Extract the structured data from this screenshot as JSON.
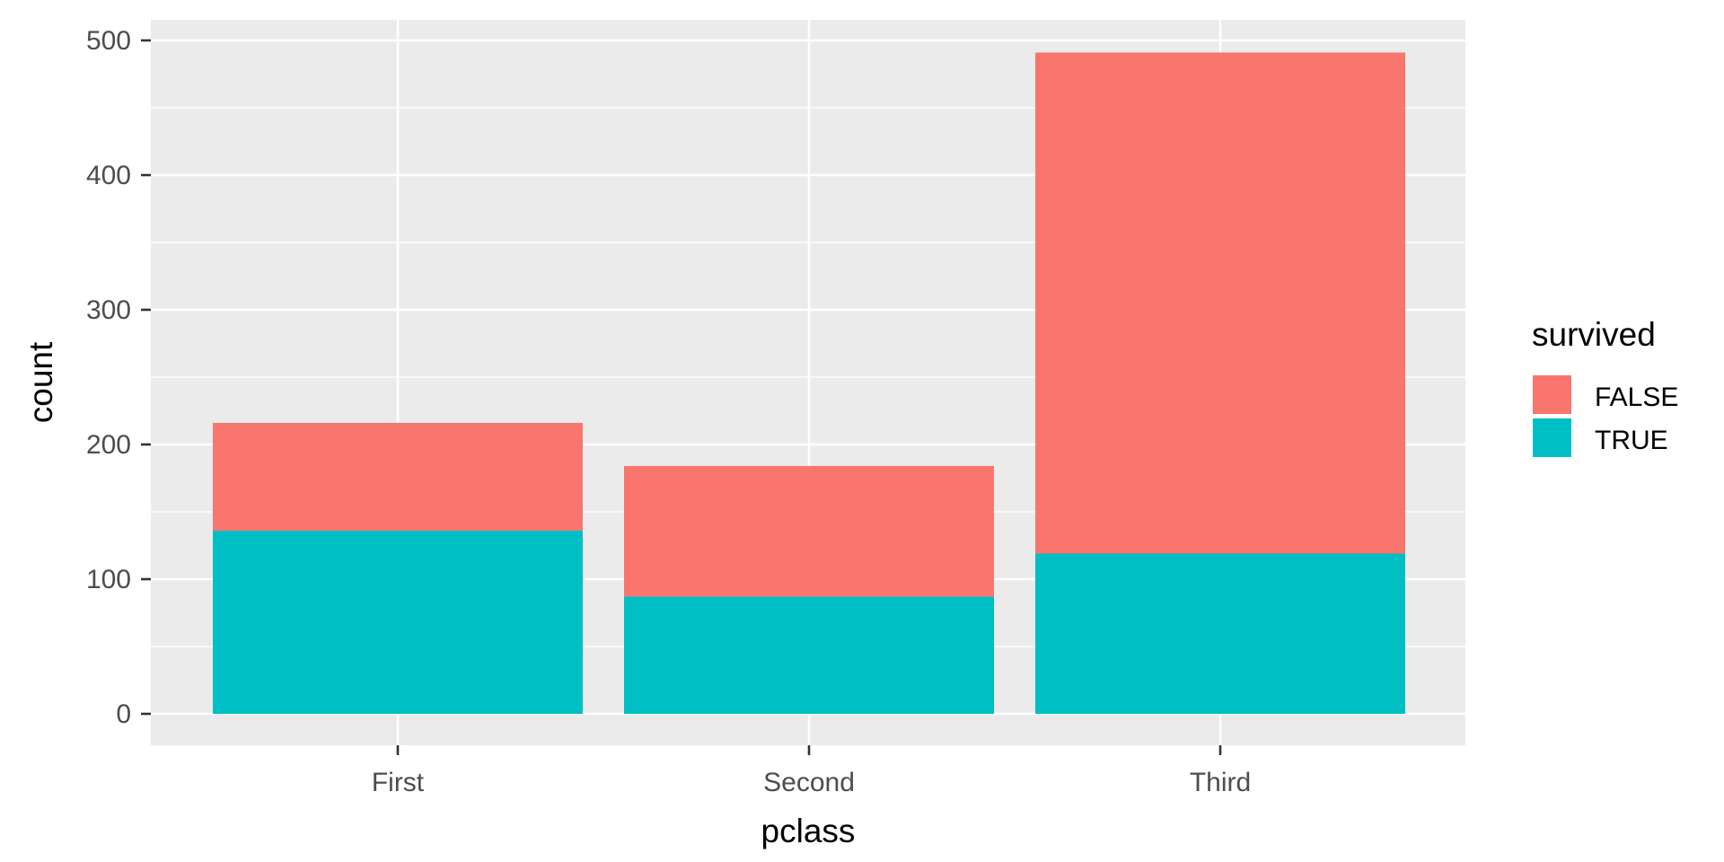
{
  "chart_data": {
    "type": "bar",
    "stacked": true,
    "categories": [
      "First",
      "Second",
      "Third"
    ],
    "series": [
      {
        "name": "FALSE",
        "color": "#F8766D",
        "values": [
          80,
          97,
          372
        ]
      },
      {
        "name": "TRUE",
        "color": "#00BFC4",
        "values": [
          136,
          87,
          119
        ]
      }
    ],
    "xlabel": "pclass",
    "ylabel": "count",
    "ylim": [
      0,
      525
    ],
    "yticks": [
      0,
      100,
      200,
      300,
      400,
      500
    ],
    "legend_title": "survived",
    "legend_position": "right",
    "grid": true,
    "panel_background": "#EBEBEB",
    "grid_color": "#FFFFFF",
    "axis_tick_color": "#333333"
  }
}
